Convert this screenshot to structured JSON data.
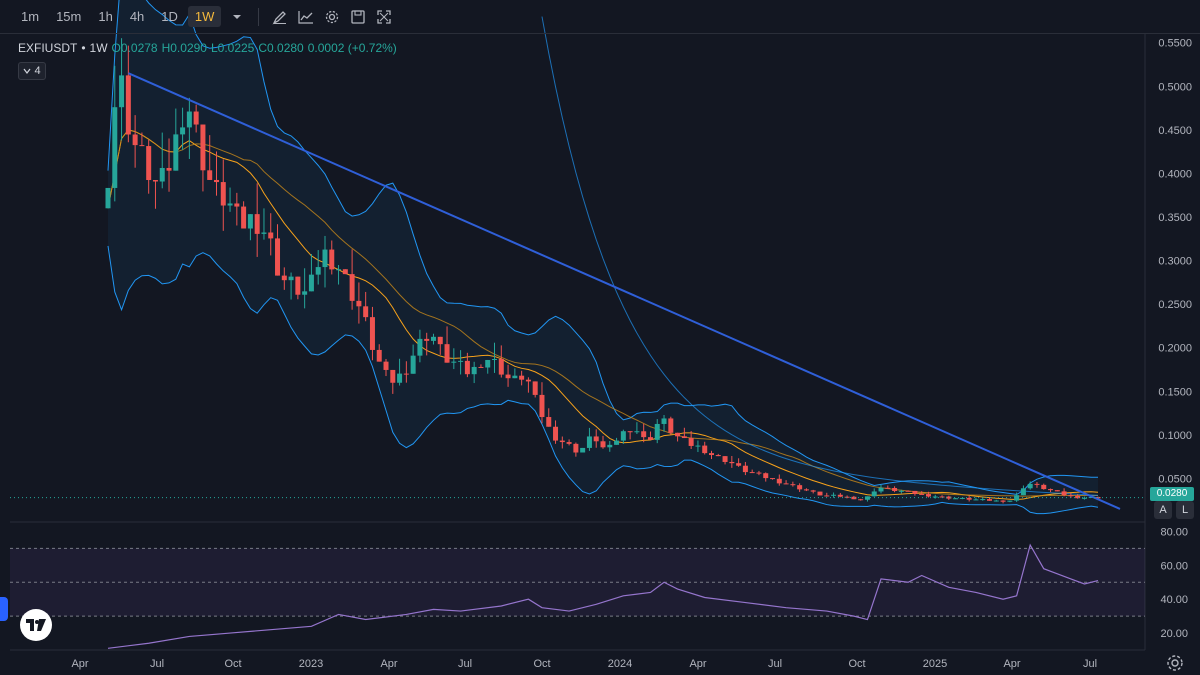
{
  "toolbar": {
    "timeframes": [
      "1m",
      "15m",
      "1h",
      "4h",
      "1D",
      "1W"
    ],
    "active_timeframe": "1W",
    "icons": [
      "chevron-down-icon",
      "draw-icon",
      "indicators-icon",
      "settings-icon",
      "save-icon",
      "fullscreen-icon"
    ]
  },
  "legend": {
    "symbol": "EXFIUSDT",
    "separator": "•",
    "interval": "1W",
    "open": "O0.0278",
    "high": "H0.0290",
    "low": "L0.0225",
    "close": "C0.0280",
    "change": "0.0002 (+0.72%)",
    "indicator_count": "4"
  },
  "price_tag": "0.0280",
  "buttons": {
    "auto": "A",
    "log": "L"
  },
  "colors": {
    "up": "#26a69a",
    "down": "#ef5350",
    "bollinger": "#2196f3",
    "ma_orange": "#f7a21b",
    "trendline": "#2f5fd8",
    "rsi": "#9575cd",
    "background": "#131722"
  },
  "chart_data": [
    {
      "type": "candlestick",
      "symbol": "EXFIUSDT",
      "interval": "1W",
      "y_axis_ticks": [
        "0.5500",
        "0.5000",
        "0.4500",
        "0.4000",
        "0.3500",
        "0.3000",
        "0.2500",
        "0.2000",
        "0.1500",
        "0.1000",
        "0.0500"
      ],
      "ylim": [
        0.0,
        0.56
      ],
      "x_axis_ticks": [
        "Apr",
        "Jul",
        "Oct",
        "2023",
        "Apr",
        "Jul",
        "Oct",
        "2024",
        "Apr",
        "Jul",
        "Oct",
        "2025",
        "Apr",
        "Jul"
      ],
      "close_path": [
        {
          "t": 0,
          "v": 0.36
        },
        {
          "t": 2,
          "v": 0.52
        },
        {
          "t": 4,
          "v": 0.44
        },
        {
          "t": 6,
          "v": 0.41
        },
        {
          "t": 8,
          "v": 0.38
        },
        {
          "t": 10,
          "v": 0.42
        },
        {
          "t": 12,
          "v": 0.49
        },
        {
          "t": 14,
          "v": 0.43
        },
        {
          "t": 16,
          "v": 0.38
        },
        {
          "t": 18,
          "v": 0.37
        },
        {
          "t": 20,
          "v": 0.34
        },
        {
          "t": 22,
          "v": 0.35
        },
        {
          "t": 24,
          "v": 0.33
        },
        {
          "t": 26,
          "v": 0.28
        },
        {
          "t": 28,
          "v": 0.27
        },
        {
          "t": 30,
          "v": 0.26
        },
        {
          "t": 32,
          "v": 0.31
        },
        {
          "t": 34,
          "v": 0.3
        },
        {
          "t": 36,
          "v": 0.27
        },
        {
          "t": 38,
          "v": 0.24
        },
        {
          "t": 40,
          "v": 0.19
        },
        {
          "t": 42,
          "v": 0.16
        },
        {
          "t": 44,
          "v": 0.17
        },
        {
          "t": 46,
          "v": 0.2
        },
        {
          "t": 48,
          "v": 0.22
        },
        {
          "t": 50,
          "v": 0.19
        },
        {
          "t": 52,
          "v": 0.18
        },
        {
          "t": 54,
          "v": 0.17
        },
        {
          "t": 56,
          "v": 0.19
        },
        {
          "t": 58,
          "v": 0.18
        },
        {
          "t": 60,
          "v": 0.16
        },
        {
          "t": 62,
          "v": 0.17
        },
        {
          "t": 64,
          "v": 0.13
        },
        {
          "t": 66,
          "v": 0.1
        },
        {
          "t": 68,
          "v": 0.09
        },
        {
          "t": 70,
          "v": 0.08
        },
        {
          "t": 72,
          "v": 0.1
        },
        {
          "t": 74,
          "v": 0.08
        },
        {
          "t": 76,
          "v": 0.1
        },
        {
          "t": 78,
          "v": 0.11
        },
        {
          "t": 80,
          "v": 0.09
        },
        {
          "t": 82,
          "v": 0.12
        },
        {
          "t": 84,
          "v": 0.1
        },
        {
          "t": 86,
          "v": 0.09
        },
        {
          "t": 88,
          "v": 0.085
        },
        {
          "t": 90,
          "v": 0.075
        },
        {
          "t": 92,
          "v": 0.07
        },
        {
          "t": 94,
          "v": 0.06
        },
        {
          "t": 96,
          "v": 0.055
        },
        {
          "t": 98,
          "v": 0.05
        },
        {
          "t": 100,
          "v": 0.045
        },
        {
          "t": 102,
          "v": 0.04
        },
        {
          "t": 104,
          "v": 0.035
        },
        {
          "t": 106,
          "v": 0.03
        },
        {
          "t": 108,
          "v": 0.03
        },
        {
          "t": 110,
          "v": 0.028
        },
        {
          "t": 112,
          "v": 0.025
        },
        {
          "t": 114,
          "v": 0.04
        },
        {
          "t": 116,
          "v": 0.037
        },
        {
          "t": 118,
          "v": 0.035
        },
        {
          "t": 120,
          "v": 0.032
        },
        {
          "t": 122,
          "v": 0.03
        },
        {
          "t": 124,
          "v": 0.028
        },
        {
          "t": 126,
          "v": 0.027
        },
        {
          "t": 128,
          "v": 0.026
        },
        {
          "t": 130,
          "v": 0.025
        },
        {
          "t": 132,
          "v": 0.024
        },
        {
          "t": 134,
          "v": 0.025
        },
        {
          "t": 136,
          "v": 0.045
        },
        {
          "t": 138,
          "v": 0.04
        },
        {
          "t": 140,
          "v": 0.035
        },
        {
          "t": 142,
          "v": 0.03
        },
        {
          "t": 144,
          "v": 0.028
        },
        {
          "t": 146,
          "v": 0.028
        }
      ]
    },
    {
      "type": "line",
      "name": "RSI",
      "y_axis_ticks": [
        "80.00",
        "60.00",
        "40.00",
        "20.00"
      ],
      "ylim": [
        10,
        85
      ],
      "bands": [
        70,
        50,
        30
      ],
      "values": [
        {
          "t": 0,
          "v": 11
        },
        {
          "t": 6,
          "v": 14
        },
        {
          "t": 12,
          "v": 18
        },
        {
          "t": 18,
          "v": 20
        },
        {
          "t": 24,
          "v": 22
        },
        {
          "t": 30,
          "v": 24
        },
        {
          "t": 34,
          "v": 31
        },
        {
          "t": 38,
          "v": 28
        },
        {
          "t": 44,
          "v": 31
        },
        {
          "t": 48,
          "v": 34
        },
        {
          "t": 52,
          "v": 33
        },
        {
          "t": 58,
          "v": 36
        },
        {
          "t": 62,
          "v": 40
        },
        {
          "t": 64,
          "v": 35
        },
        {
          "t": 68,
          "v": 33
        },
        {
          "t": 72,
          "v": 37
        },
        {
          "t": 76,
          "v": 42
        },
        {
          "t": 80,
          "v": 44
        },
        {
          "t": 82,
          "v": 50
        },
        {
          "t": 84,
          "v": 46
        },
        {
          "t": 88,
          "v": 41
        },
        {
          "t": 94,
          "v": 38
        },
        {
          "t": 100,
          "v": 35
        },
        {
          "t": 106,
          "v": 33
        },
        {
          "t": 110,
          "v": 30
        },
        {
          "t": 112,
          "v": 28
        },
        {
          "t": 114,
          "v": 52
        },
        {
          "t": 118,
          "v": 50
        },
        {
          "t": 120,
          "v": 54
        },
        {
          "t": 124,
          "v": 47
        },
        {
          "t": 128,
          "v": 44
        },
        {
          "t": 132,
          "v": 40
        },
        {
          "t": 134,
          "v": 42
        },
        {
          "t": 136,
          "v": 72
        },
        {
          "t": 138,
          "v": 58
        },
        {
          "t": 140,
          "v": 55
        },
        {
          "t": 142,
          "v": 52
        },
        {
          "t": 144,
          "v": 49
        },
        {
          "t": 146,
          "v": 51
        }
      ]
    }
  ]
}
